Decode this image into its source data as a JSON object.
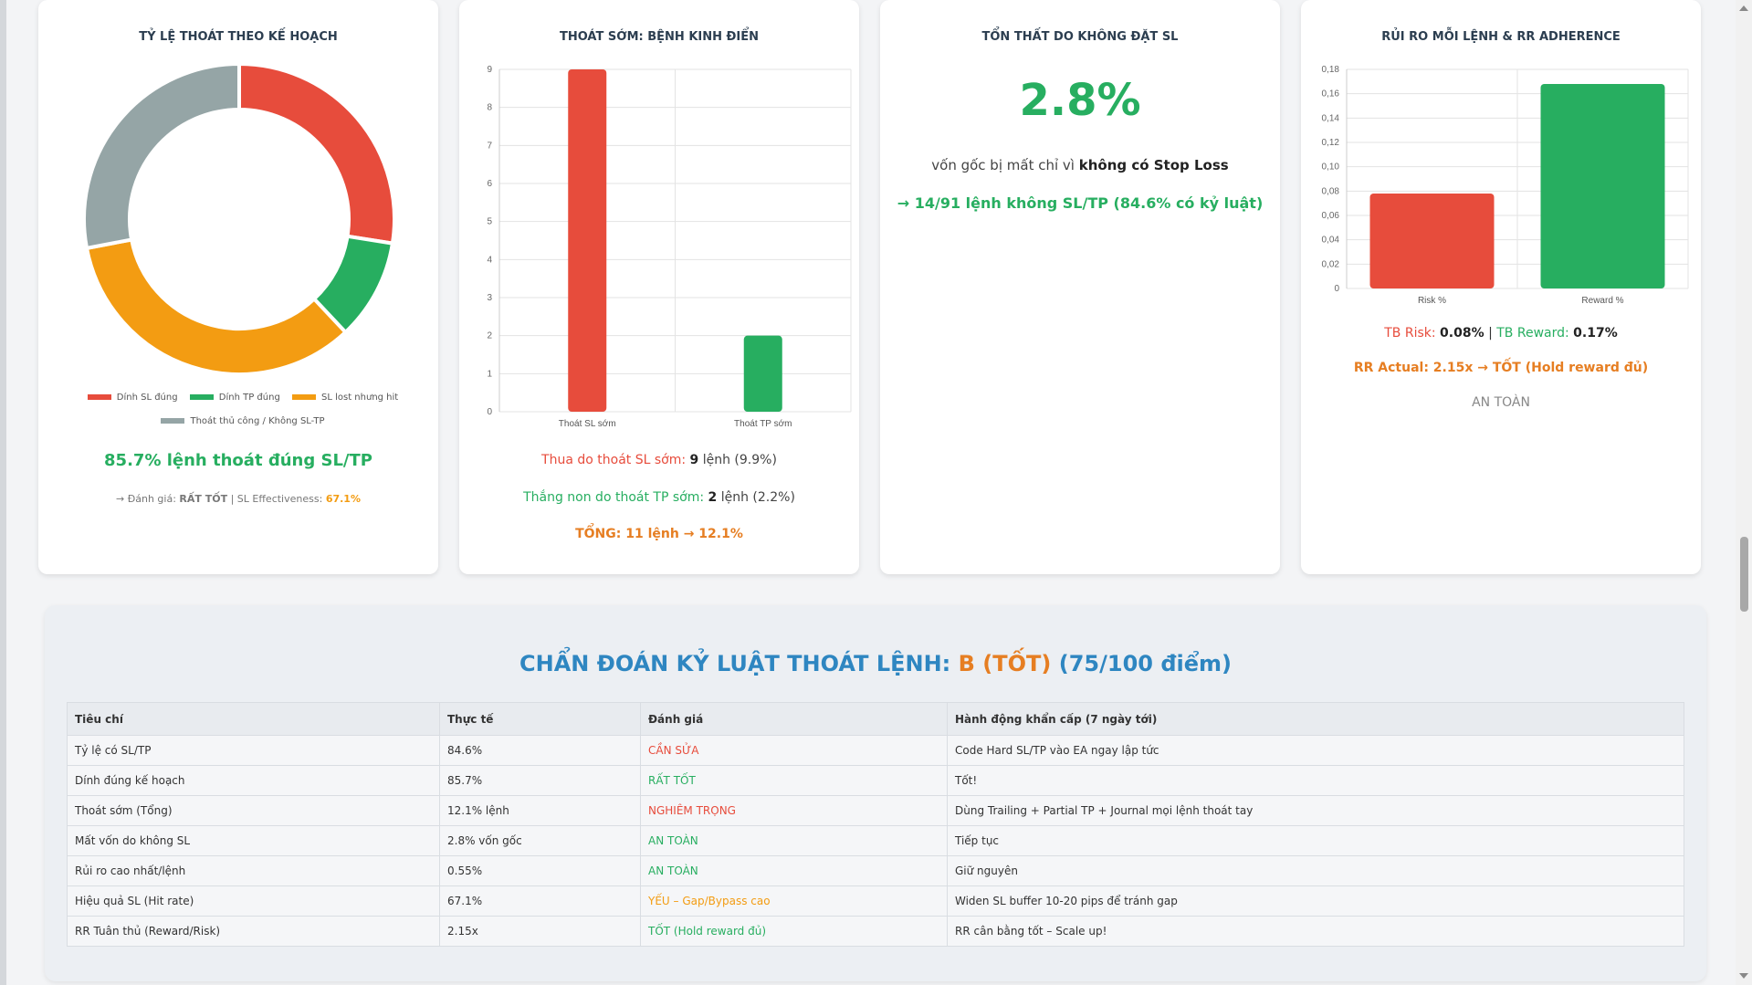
{
  "cards": {
    "exit_plan": {
      "title": "TỶ LỆ THOÁT THEO KẾ HOẠCH",
      "legend": [
        {
          "label": "Dính SL đúng",
          "color": "#e74c3c"
        },
        {
          "label": "Dính TP đúng",
          "color": "#27ae60"
        },
        {
          "label": "SL lost nhưng hit",
          "color": "#f39c12"
        },
        {
          "label": "Thoát thủ công / Không SL-TP",
          "color": "#95a5a6"
        }
      ],
      "headline": "85.7% lệnh thoát đúng SL/TP",
      "eval_prefix": "→ Đánh giá:",
      "eval_value": "RẤT TỐT",
      "eval_sep": " | SL Effectiveness:",
      "eval_pct": "67.1%"
    },
    "early_exit": {
      "title": "THOÁT SỚM: BỆNH KINH ĐIỂN",
      "line1_prefix": "Thua do thoát SL sớm:",
      "line1_bold": "9",
      "line1_suffix": "lệnh (9.9%)",
      "line2_prefix": "Thắng non do thoát TP sớm:",
      "line2_bold": "2",
      "line2_suffix": "lệnh (2.2%)",
      "total": "TỔNG: 11 lệnh → 12.1%"
    },
    "loss_no_sl": {
      "title": "TỔN THẤT DO KHÔNG ĐẶT SL",
      "big_value": "2.8%",
      "desc_prefix": "vốn gốc bị mất chỉ vì",
      "desc_bold": "không có Stop Loss",
      "note": "→ 14/91 lệnh không SL/TP (84.6% có kỷ luật)"
    },
    "risk_rr": {
      "title": "RỦI RO MỖI LỆNH & RR ADHERENCE",
      "risk_label": "TB Risk:",
      "risk_value": "0.08%",
      "sep": "|",
      "reward_label": "TB Reward:",
      "reward_value": "0.17%",
      "rr_line": "RR Actual: 2.15x → TỐT (Hold reward đủ)",
      "safety": "AN TOÀN"
    }
  },
  "chart_data": [
    {
      "type": "pie",
      "categories": [
        "Dính SL đúng",
        "Dính TP đúng",
        "SL lost nhưng hit",
        "Thoát thủ công / Không SL-TP"
      ],
      "values": [
        27.5,
        10.5,
        34,
        28
      ],
      "colors": [
        "#e74c3c",
        "#27ae60",
        "#f39c12",
        "#95a5a6"
      ],
      "legend": "bottom"
    },
    {
      "type": "bar",
      "categories": [
        "Thoát SL sớm",
        "Thoát TP sớm"
      ],
      "values": [
        9,
        2
      ],
      "colors": [
        "#e74c3c",
        "#27ae60"
      ],
      "ylim": [
        0,
        9
      ],
      "yticks": [
        0,
        1,
        2,
        3,
        4,
        5,
        6,
        7,
        8,
        9
      ],
      "grid": true
    },
    {
      "type": "bar",
      "categories": [
        "Risk %",
        "Reward %"
      ],
      "values": [
        0.078,
        0.168
      ],
      "colors": [
        "#e74c3c",
        "#27ae60"
      ],
      "ylim": [
        0,
        0.18
      ],
      "yticks": [
        "0",
        "0,02",
        "0,04",
        "0,06",
        "0,08",
        "0,10",
        "0,12",
        "0,14",
        "0,16",
        "0,18"
      ],
      "grid": true
    }
  ],
  "diagnosis": {
    "title_prefix": "CHẨN ĐOÁN KỶ LUẬT THOÁT LỆNH:",
    "grade": "B (TỐT)",
    "score": "(75/100 điểm)",
    "headers": [
      "Tiêu chí",
      "Thực tế",
      "Đánh giá",
      "Hành động khẩn cấp (7 ngày tới)"
    ],
    "rows": [
      {
        "criteria": "Tỷ lệ có SL/TP",
        "actual": "84.6%",
        "eval": "CẦN SỬA",
        "eval_color": "#e74c3c",
        "action": "Code Hard SL/TP vào EA ngay lập tức"
      },
      {
        "criteria": "Dính đúng kế hoạch",
        "actual": "85.7%",
        "eval": "RẤT TỐT",
        "eval_color": "#27ae60",
        "action": "Tốt!"
      },
      {
        "criteria": "Thoát sớm (Tổng)",
        "actual": "12.1% lệnh",
        "eval": "NGHIÊM TRỌNG",
        "eval_color": "#e74c3c",
        "action": "Dùng Trailing + Partial TP + Journal mọi lệnh thoát tay"
      },
      {
        "criteria": "Mất vốn do không SL",
        "actual": "2.8% vốn gốc",
        "eval": "AN TOÀN",
        "eval_color": "#27ae60",
        "action": "Tiếp tục"
      },
      {
        "criteria": "Rủi ro cao nhất/lệnh",
        "actual": "0.55%",
        "eval": "AN TOÀN",
        "eval_color": "#27ae60",
        "action": "Giữ nguyên"
      },
      {
        "criteria": "Hiệu quả SL (Hit rate)",
        "actual": "67.1%",
        "eval": "YẾU – Gap/Bypass cao",
        "eval_color": "#f39c12",
        "action": "Widen SL buffer 10-20 pips để tránh gap"
      },
      {
        "criteria": "RR Tuân thủ (Reward/Risk)",
        "actual": "2.15x",
        "eval": "TỐT (Hold reward đủ)",
        "eval_color": "#27ae60",
        "action": "RR cân bằng tốt – Scale up!"
      }
    ]
  }
}
